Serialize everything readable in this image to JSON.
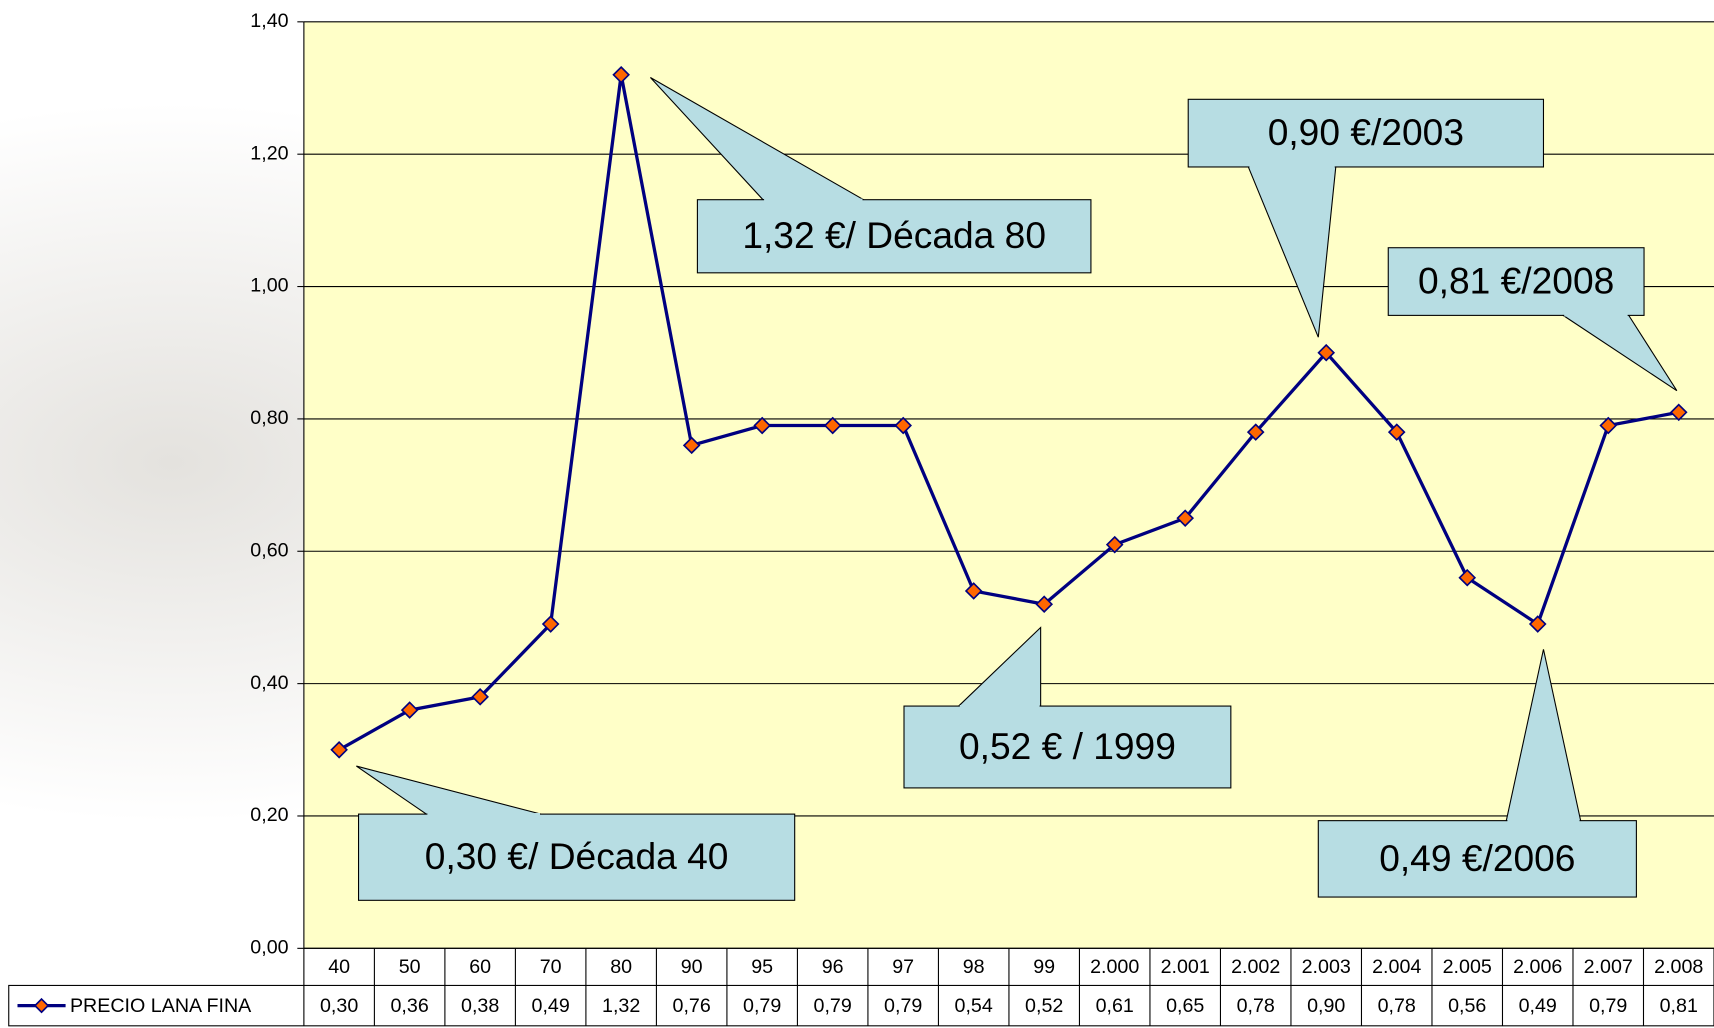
{
  "chart_data": {
    "type": "line",
    "categories": [
      "40",
      "50",
      "60",
      "70",
      "80",
      "90",
      "95",
      "96",
      "97",
      "98",
      "99",
      "2.000",
      "2.001",
      "2.002",
      "2.003",
      "2.004",
      "2.005",
      "2.006",
      "2.007",
      "2.008"
    ],
    "series": [
      {
        "name": "PRECIO LANA FINA",
        "color": "#000080",
        "marker_color": "#ff6600",
        "values": [
          0.3,
          0.36,
          0.38,
          0.49,
          1.32,
          0.76,
          0.79,
          0.79,
          0.79,
          0.54,
          0.52,
          0.61,
          0.65,
          0.78,
          0.9,
          0.78,
          0.56,
          0.49,
          0.79,
          0.81
        ],
        "value_labels": [
          "0,30",
          "0,36",
          "0,38",
          "0,49",
          "1,32",
          "0,76",
          "0,79",
          "0,79",
          "0,79",
          "0,54",
          "0,52",
          "0,61",
          "0,65",
          "0,78",
          "0,90",
          "0,78",
          "0,56",
          "0,49",
          "0,79",
          "0,81"
        ]
      }
    ],
    "ylim": [
      0,
      1.4
    ],
    "yticks": [
      {
        "value": 0,
        "label": "0,00"
      },
      {
        "value": 0.2,
        "label": "0,20"
      },
      {
        "value": 0.4,
        "label": "0,40"
      },
      {
        "value": 0.6,
        "label": "0,60"
      },
      {
        "value": 0.8,
        "label": "0,80"
      },
      {
        "value": 1.0,
        "label": "1,00"
      },
      {
        "value": 1.2,
        "label": "1,20"
      },
      {
        "value": 1.4,
        "label": "1,40"
      }
    ],
    "grid": true,
    "plot_background": "#ffffc8",
    "callout_color": "#b7dde3",
    "annotations": [
      "0,30 €/ Década 40",
      "1,32 €/ Década 80",
      "0,52 € / 1999",
      "0,90 €/2003",
      "0,81 €/2008",
      "0,49 €/2006"
    ]
  }
}
